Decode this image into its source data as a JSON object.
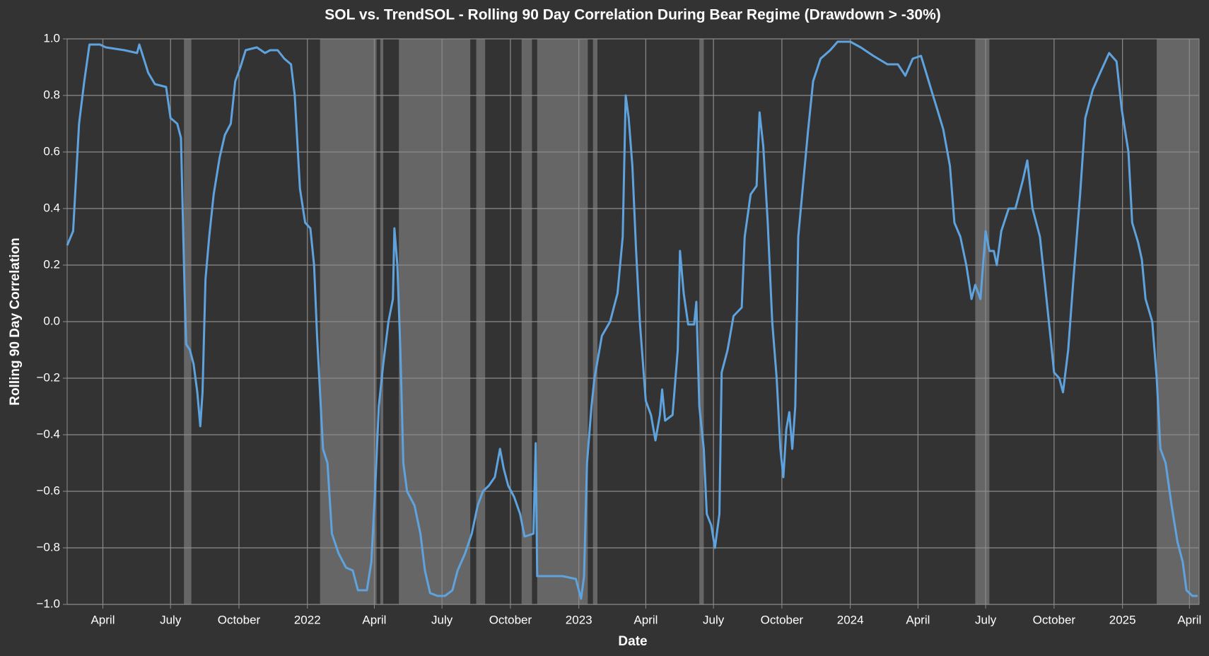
{
  "chart_data": {
    "type": "line",
    "title": "SOL vs. TrendSOL - Rolling 90 Day Correlation During Bear Regime (Drawdown > -30%)",
    "x_label": "Date",
    "y_label": "Rolling 90 Day Correlation",
    "color": "#5fa3de",
    "shade_color": "#666666",
    "grid": true,
    "xlim": [
      "2021-02-12",
      "2025-04-14"
    ],
    "ylim": [
      -1,
      1
    ],
    "xticks": [
      {
        "value": "2021-04-01",
        "label": "April"
      },
      {
        "value": "2021-07-01",
        "label": "July"
      },
      {
        "value": "2021-10-01",
        "label": "October"
      },
      {
        "value": "2022-01-01",
        "label": "2022"
      },
      {
        "value": "2022-04-01",
        "label": "April"
      },
      {
        "value": "2022-07-01",
        "label": "July"
      },
      {
        "value": "2022-10-01",
        "label": "October"
      },
      {
        "value": "2023-01-01",
        "label": "2023"
      },
      {
        "value": "2023-04-01",
        "label": "April"
      },
      {
        "value": "2023-07-01",
        "label": "July"
      },
      {
        "value": "2023-10-01",
        "label": "October"
      },
      {
        "value": "2024-01-01",
        "label": "2024"
      },
      {
        "value": "2024-04-01",
        "label": "April"
      },
      {
        "value": "2024-07-01",
        "label": "July"
      },
      {
        "value": "2024-10-01",
        "label": "October"
      },
      {
        "value": "2025-01-01",
        "label": "2025"
      },
      {
        "value": "2025-04-01",
        "label": "April"
      }
    ],
    "yticks": [
      {
        "value": -1,
        "label": "−1.0"
      },
      {
        "value": -0.8,
        "label": "−0.8"
      },
      {
        "value": -0.6,
        "label": "−0.6"
      },
      {
        "value": -0.4,
        "label": "−0.4"
      },
      {
        "value": -0.2,
        "label": "−0.2"
      },
      {
        "value": 0,
        "label": "0.0"
      },
      0.2,
      0.4,
      0.6,
      0.8,
      {
        "value": 1,
        "label": "1.0"
      }
    ],
    "shaded_regions": [
      [
        "2021-07-19",
        "2021-07-29"
      ],
      [
        "2022-01-18",
        "2022-04-04"
      ],
      [
        "2022-04-09",
        "2022-04-13"
      ],
      [
        "2022-05-04",
        "2022-08-08"
      ],
      [
        "2022-08-16",
        "2022-08-28"
      ],
      [
        "2022-10-16",
        "2022-10-30"
      ],
      [
        "2022-11-06",
        "2023-01-13"
      ],
      [
        "2023-01-20",
        "2023-01-26"
      ],
      [
        "2023-06-12",
        "2023-06-18"
      ],
      [
        "2024-06-17",
        "2024-07-06"
      ],
      [
        "2025-02-16",
        "2025-04-14"
      ]
    ],
    "x": [
      "2021-02-12",
      "2021-02-20",
      "2021-02-28",
      "2021-03-07",
      "2021-03-14",
      "2021-03-28",
      "2021-04-05",
      "2021-04-30",
      "2021-05-17",
      "2021-05-20",
      "2021-06-01",
      "2021-06-10",
      "2021-06-25",
      "2021-07-01",
      "2021-07-10",
      "2021-07-15",
      "2021-07-20",
      "2021-07-22",
      "2021-07-27",
      "2021-08-01",
      "2021-08-06",
      "2021-08-10",
      "2021-08-13",
      "2021-08-17",
      "2021-08-22",
      "2021-08-28",
      "2021-09-05",
      "2021-09-12",
      "2021-09-20",
      "2021-09-26",
      "2021-10-03",
      "2021-10-10",
      "2021-10-25",
      "2021-11-05",
      "2021-11-12",
      "2021-11-22",
      "2021-12-01",
      "2021-12-10",
      "2021-12-15",
      "2021-12-22",
      "2021-12-29",
      "2022-01-05",
      "2022-01-10",
      "2022-01-14",
      "2022-01-18",
      "2022-01-22",
      "2022-01-28",
      "2022-02-03",
      "2022-02-12",
      "2022-02-22",
      "2022-03-03",
      "2022-03-10",
      "2022-03-22",
      "2022-03-28",
      "2022-04-02",
      "2022-04-07",
      "2022-04-13",
      "2022-04-20",
      "2022-04-26",
      "2022-04-28",
      "2022-05-02",
      "2022-05-06",
      "2022-05-10",
      "2022-05-15",
      "2022-05-25",
      "2022-06-02",
      "2022-06-08",
      "2022-06-15",
      "2022-06-25",
      "2022-07-05",
      "2022-07-15",
      "2022-07-22",
      "2022-08-01",
      "2022-08-10",
      "2022-08-18",
      "2022-08-25",
      "2022-09-02",
      "2022-09-10",
      "2022-09-17",
      "2022-09-22",
      "2022-09-28",
      "2022-10-06",
      "2022-10-14",
      "2022-10-20",
      "2022-11-01",
      "2022-11-04",
      "2022-11-06",
      "2022-11-15",
      "2022-12-10",
      "2022-12-28",
      "2023-01-04",
      "2023-01-08",
      "2023-01-12",
      "2023-01-18",
      "2023-01-22",
      "2023-02-01",
      "2023-02-12",
      "2023-02-22",
      "2023-03-01",
      "2023-03-05",
      "2023-03-09",
      "2023-03-14",
      "2023-03-19",
      "2023-03-24",
      "2023-04-01",
      "2023-04-08",
      "2023-04-14",
      "2023-04-20",
      "2023-04-23",
      "2023-04-27",
      "2023-05-07",
      "2023-05-14",
      "2023-05-17",
      "2023-05-22",
      "2023-05-28",
      "2023-06-05",
      "2023-06-08",
      "2023-06-12",
      "2023-06-18",
      "2023-06-22",
      "2023-06-28",
      "2023-07-03",
      "2023-07-09",
      "2023-07-12",
      "2023-07-20",
      "2023-07-28",
      "2023-08-08",
      "2023-08-12",
      "2023-08-20",
      "2023-08-28",
      "2023-09-01",
      "2023-09-06",
      "2023-09-12",
      "2023-09-18",
      "2023-09-24",
      "2023-09-29",
      "2023-10-03",
      "2023-10-07",
      "2023-10-11",
      "2023-10-15",
      "2023-10-19",
      "2023-10-23",
      "2023-10-30",
      "2023-11-05",
      "2023-11-12",
      "2023-11-22",
      "2023-12-05",
      "2023-12-15",
      "2024-01-01",
      "2024-01-15",
      "2024-02-01",
      "2024-02-20",
      "2024-03-05",
      "2024-03-15",
      "2024-03-25",
      "2024-04-05",
      "2024-04-12",
      "2024-04-20",
      "2024-04-27",
      "2024-05-05",
      "2024-05-14",
      "2024-05-20",
      "2024-05-28",
      "2024-06-05",
      "2024-06-12",
      "2024-06-17",
      "2024-06-24",
      "2024-07-01",
      "2024-07-06",
      "2024-07-12",
      "2024-07-16",
      "2024-07-22",
      "2024-08-01",
      "2024-08-10",
      "2024-08-20",
      "2024-08-26",
      "2024-09-02",
      "2024-09-12",
      "2024-09-20",
      "2024-09-26",
      "2024-10-01",
      "2024-10-08",
      "2024-10-13",
      "2024-10-20",
      "2024-10-27",
      "2024-11-05",
      "2024-11-12",
      "2024-11-22",
      "2024-12-02",
      "2024-12-14",
      "2024-12-24",
      "2024-12-31",
      "2025-01-09",
      "2025-01-14",
      "2025-01-22",
      "2025-01-27",
      "2025-02-01",
      "2025-02-10",
      "2025-02-16",
      "2025-02-21",
      "2025-02-28",
      "2025-03-08",
      "2025-03-16",
      "2025-03-23",
      "2025-03-28",
      "2025-04-05",
      "2025-04-12"
    ],
    "values": [
      0.27,
      0.32,
      0.7,
      0.85,
      0.98,
      0.98,
      0.97,
      0.96,
      0.95,
      0.98,
      0.88,
      0.84,
      0.83,
      0.72,
      0.7,
      0.65,
      0.1,
      -0.08,
      -0.1,
      -0.15,
      -0.25,
      -0.37,
      -0.25,
      0.15,
      0.3,
      0.45,
      0.58,
      0.66,
      0.7,
      0.85,
      0.9,
      0.96,
      0.97,
      0.95,
      0.96,
      0.96,
      0.93,
      0.91,
      0.8,
      0.47,
      0.35,
      0.33,
      0.2,
      -0.05,
      -0.25,
      -0.45,
      -0.5,
      -0.75,
      -0.82,
      -0.87,
      -0.88,
      -0.95,
      -0.95,
      -0.85,
      -0.6,
      -0.3,
      -0.15,
      0.0,
      0.08,
      0.33,
      0.2,
      -0.1,
      -0.5,
      -0.6,
      -0.65,
      -0.75,
      -0.88,
      -0.96,
      -0.97,
      -0.97,
      -0.95,
      -0.88,
      -0.82,
      -0.75,
      -0.65,
      -0.6,
      -0.58,
      -0.55,
      -0.45,
      -0.52,
      -0.58,
      -0.62,
      -0.68,
      -0.76,
      -0.75,
      -0.43,
      -0.9,
      -0.9,
      -0.9,
      -0.91,
      -0.98,
      -0.9,
      -0.5,
      -0.3,
      -0.2,
      -0.05,
      0.0,
      0.1,
      0.3,
      0.8,
      0.72,
      0.55,
      0.25,
      0.0,
      -0.28,
      -0.33,
      -0.42,
      -0.33,
      -0.24,
      -0.35,
      -0.33,
      -0.1,
      0.25,
      0.1,
      -0.01,
      -0.01,
      0.07,
      -0.3,
      -0.45,
      -0.68,
      -0.72,
      -0.8,
      -0.68,
      -0.18,
      -0.1,
      0.02,
      0.05,
      0.3,
      0.45,
      0.48,
      0.74,
      0.62,
      0.35,
      0.0,
      -0.2,
      -0.45,
      -0.55,
      -0.38,
      -0.32,
      -0.45,
      -0.3,
      0.3,
      0.5,
      0.67,
      0.85,
      0.93,
      0.96,
      0.99,
      0.99,
      0.97,
      0.94,
      0.91,
      0.91,
      0.87,
      0.93,
      0.94,
      0.88,
      0.81,
      0.75,
      0.68,
      0.55,
      0.35,
      0.3,
      0.2,
      0.08,
      0.13,
      0.08,
      0.32,
      0.25,
      0.25,
      0.2,
      0.32,
      0.4,
      0.4,
      0.5,
      0.57,
      0.4,
      0.3,
      0.1,
      -0.05,
      -0.18,
      -0.2,
      -0.25,
      -0.1,
      0.15,
      0.45,
      0.72,
      0.82,
      0.88,
      0.95,
      0.92,
      0.75,
      0.6,
      0.35,
      0.28,
      0.22,
      0.08,
      0.0,
      -0.2,
      -0.45,
      -0.5,
      -0.65,
      -0.78,
      -0.85,
      -0.95,
      -0.97,
      -0.97
    ]
  }
}
